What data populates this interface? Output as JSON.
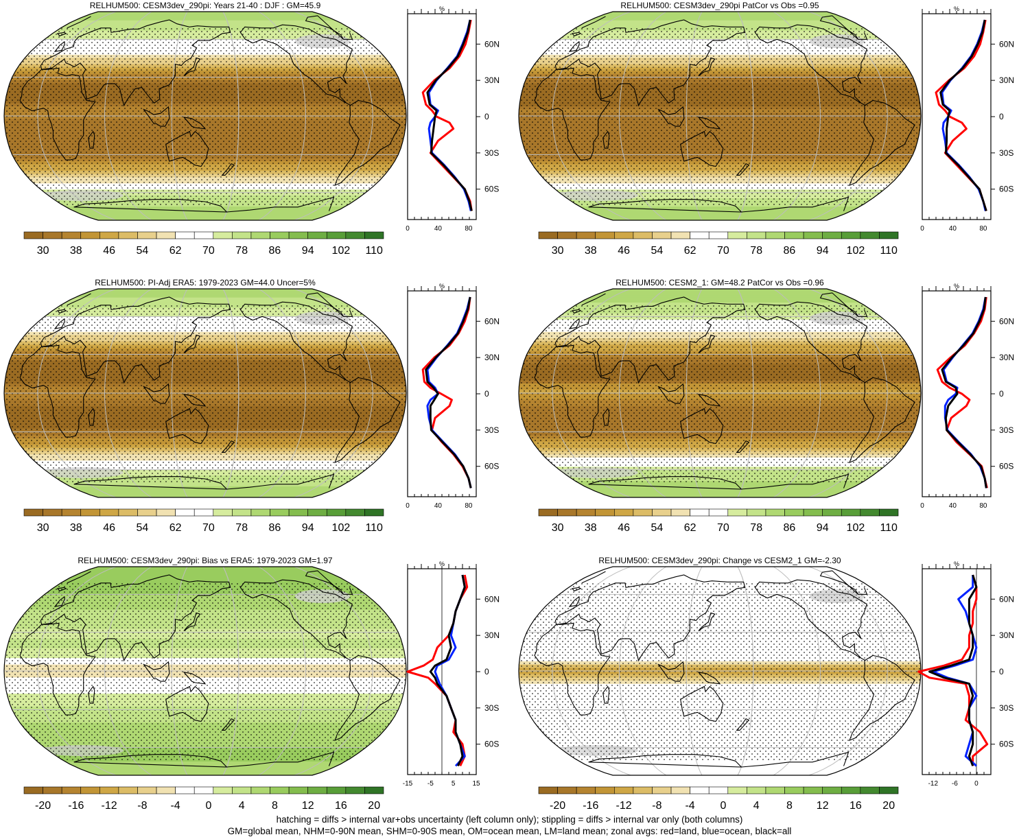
{
  "figure": {
    "footnote_line1": "hatching = diffs > internal var+obs uncertainty (left column only); stippling = diffs > internal var only (both columns)",
    "footnote_line2": "GM=global mean, NHM=0-90N mean, SHM=0-90S mean, OM=ocean mean, LM=land mean; zonal avgs: red=land, blue=ocean, black=all",
    "panel_headers": [
      "RELHUM500: CESM3dev_290pi: Years 21-40 : DJF : GM=45.9",
      "RELHUM500: CESM3dev_290pi PatCor vs Obs =0.95",
      "RELHUM500: PI-Adj ERA5: 1979-2023 GM=44.0 Uncer=5%",
      "RELHUM500: CESM2_1: GM=48.2 PatCor vs Obs =0.96",
      "RELHUM500: CESM3dev_290pi: Bias vs ERA5: 1979-2023 GM=1.97",
      "RELHUM500: CESM3dev_290pi: Change vs CESM2_1 GM=-2.30"
    ]
  },
  "colors": {
    "absolute_scale": [
      "#9a6b22",
      "#a8772a",
      "#b58430",
      "#c29536",
      "#cfa746",
      "#dcbc66",
      "#e8d08c",
      "#f1e2b2",
      "#ffffff",
      "#ffffff",
      "#d6ec9e",
      "#c3e389",
      "#afd872",
      "#99cc5e",
      "#84bd4e",
      "#6eae43",
      "#589e38",
      "#43892f",
      "#2f7426"
    ],
    "difference_scale": [
      "#9a6b22",
      "#a8772a",
      "#b58430",
      "#c29536",
      "#cfa746",
      "#dcbc66",
      "#e8d08c",
      "#f1e2b2",
      "#ffffff",
      "#ffffff",
      "#d6ec9e",
      "#c3e389",
      "#afd872",
      "#99cc5e",
      "#84bd4e",
      "#6eae43",
      "#589e38",
      "#43892f",
      "#2f7426"
    ],
    "land_line": "#ff0000",
    "ocean_line": "#0022ff",
    "all_line": "#000000",
    "no_data": "#cfcfcf"
  },
  "chart_data": [
    {
      "type": "heatmap",
      "title": "RELHUM500: CESM3dev_290pi: Years 21-40 : DJF : GM=45.9",
      "projection": "Robinson, Pacific-centred",
      "colorbar_labels": [
        "30",
        "38",
        "46",
        "54",
        "62",
        "70",
        "78",
        "86",
        "94",
        "102",
        "110"
      ],
      "zonal_profile": {
        "ylabel": "%",
        "lat_tick_labels": [
          "60N",
          "30N",
          "0",
          "30S",
          "60S"
        ],
        "x_tick_labels": [
          "0",
          "40",
          "80"
        ],
        "xlim": [
          0,
          90
        ],
        "lat": [
          80,
          70,
          60,
          50,
          40,
          30,
          20,
          10,
          5,
          0,
          -5,
          -10,
          -20,
          -30,
          -40,
          -50,
          -60,
          -70,
          -78
        ],
        "series": [
          {
            "name": "land",
            "values": [
              83,
              80,
              76,
              68,
              55,
              35,
              20,
              24,
              32,
              38,
              55,
              60,
              40,
              30,
              45,
              60,
              75,
              82,
              84
            ]
          },
          {
            "name": "ocean",
            "values": [
              82,
              78,
              72,
              65,
              52,
              38,
              28,
              30,
              40,
              36,
              30,
              28,
              30,
              32,
              48,
              62,
              74,
              80,
              83
            ]
          },
          {
            "name": "all",
            "values": [
              82,
              79,
              73,
              66,
              53,
              37,
              26,
              29,
              38,
              36,
              35,
              34,
              32,
              31,
              47,
              61,
              75,
              81,
              84
            ]
          }
        ]
      }
    },
    {
      "type": "heatmap",
      "title": "RELHUM500: CESM3dev_290pi PatCor vs Obs =0.95",
      "projection": "Robinson, Pacific-centred",
      "colorbar_labels": [
        "30",
        "38",
        "46",
        "54",
        "62",
        "70",
        "78",
        "86",
        "94",
        "102",
        "110"
      ],
      "zonal_profile": {
        "ylabel": "%",
        "lat_tick_labels": [
          "60N",
          "30N",
          "0",
          "30S",
          "60S"
        ],
        "x_tick_labels": [
          "0",
          "40",
          "80"
        ],
        "xlim": [
          0,
          90
        ],
        "lat": [
          80,
          70,
          60,
          50,
          40,
          30,
          20,
          10,
          5,
          0,
          -5,
          -10,
          -20,
          -30,
          -40,
          -50,
          -60,
          -70,
          -78
        ],
        "series": [
          {
            "name": "land",
            "values": [
              83,
              80,
              76,
              68,
              55,
              35,
              18,
              22,
              30,
              36,
              52,
              58,
              40,
              30,
              45,
              60,
              75,
              80,
              84
            ]
          },
          {
            "name": "ocean",
            "values": [
              82,
              78,
              72,
              64,
              52,
              37,
              26,
              28,
              38,
              34,
              28,
              27,
              30,
              32,
              48,
              62,
              74,
              80,
              83
            ]
          },
          {
            "name": "all",
            "values": [
              82,
              79,
              73,
              65,
              53,
              36,
              24,
              27,
              36,
              34,
              33,
              32,
              32,
              31,
              47,
              61,
              75,
              80,
              84
            ]
          }
        ]
      }
    },
    {
      "type": "heatmap",
      "title": "RELHUM500: PI-Adj ERA5: 1979-2023 GM=44.0 Uncer=5%",
      "projection": "Robinson, Pacific-centred",
      "colorbar_labels": [
        "30",
        "38",
        "46",
        "54",
        "62",
        "70",
        "78",
        "86",
        "94",
        "102",
        "110"
      ],
      "zonal_profile": {
        "ylabel": "%",
        "lat_tick_labels": [
          "60N",
          "30N",
          "0",
          "30S",
          "60S"
        ],
        "x_tick_labels": [
          "0",
          "40",
          "80"
        ],
        "xlim": [
          0,
          90
        ],
        "lat": [
          80,
          70,
          60,
          50,
          40,
          30,
          20,
          10,
          5,
          0,
          -5,
          -10,
          -20,
          -30,
          -40,
          -50,
          -60,
          -70,
          -78
        ],
        "series": [
          {
            "name": "land",
            "values": [
              82,
              80,
              75,
              67,
              55,
              35,
              20,
              22,
              30,
              44,
              58,
              55,
              36,
              32,
              45,
              60,
              72,
              80,
              83
            ]
          },
          {
            "name": "ocean",
            "values": [
              82,
              78,
              72,
              65,
              52,
              38,
              26,
              28,
              36,
              40,
              30,
              26,
              28,
              32,
              47,
              62,
              73,
              80,
              83
            ]
          },
          {
            "name": "all",
            "values": [
              82,
              79,
              73,
              66,
              53,
              37,
              24,
              26,
              34,
              40,
              35,
              30,
              30,
              31,
              46,
              61,
              73,
              80,
              83
            ]
          }
        ]
      }
    },
    {
      "type": "heatmap",
      "title": "RELHUM500: CESM2_1: GM=48.2 PatCor vs Obs =0.96",
      "projection": "Robinson, Pacific-centred",
      "colorbar_labels": [
        "30",
        "38",
        "46",
        "54",
        "62",
        "70",
        "78",
        "86",
        "94",
        "102",
        "110"
      ],
      "zonal_profile": {
        "ylabel": "%",
        "lat_tick_labels": [
          "60N",
          "30N",
          "0",
          "30S",
          "60S"
        ],
        "x_tick_labels": [
          "0",
          "40",
          "80"
        ],
        "xlim": [
          0,
          90
        ],
        "lat": [
          80,
          70,
          60,
          50,
          40,
          30,
          20,
          10,
          5,
          0,
          -5,
          -10,
          -20,
          -30,
          -40,
          -50,
          -60,
          -70,
          -78
        ],
        "series": [
          {
            "name": "land",
            "values": [
              84,
              82,
              77,
              68,
              56,
              37,
              20,
              26,
              36,
              52,
              62,
              58,
              38,
              32,
              45,
              62,
              78,
              82,
              85
            ]
          },
          {
            "name": "ocean",
            "values": [
              83,
              80,
              74,
              66,
              53,
              40,
              28,
              32,
              46,
              44,
              34,
              30,
              30,
              33,
              48,
              64,
              76,
              82,
              84
            ]
          },
          {
            "name": "all",
            "values": [
              83,
              81,
              75,
              67,
              54,
              39,
              26,
              31,
              44,
              46,
              40,
              34,
              31,
              32,
              47,
              63,
              77,
              82,
              84
            ]
          }
        ]
      }
    },
    {
      "type": "heatmap",
      "title": "RELHUM500: CESM3dev_290pi: Bias vs ERA5: 1979-2023 GM=1.97",
      "projection": "Robinson, Pacific-centred",
      "colorbar_labels": [
        "-20",
        "-16",
        "-12",
        "-8",
        "-4",
        "0",
        "4",
        "8",
        "12",
        "16",
        "20"
      ],
      "zonal_profile": {
        "ylabel": "%",
        "lat_tick_labels": [
          "60N",
          "30N",
          "0",
          "30S",
          "60S"
        ],
        "x_tick_labels": [
          "-15",
          "-5",
          "5",
          "15"
        ],
        "xlim": [
          -15,
          15
        ],
        "lat": [
          80,
          70,
          60,
          50,
          40,
          30,
          20,
          10,
          5,
          0,
          -5,
          -10,
          -20,
          -30,
          -40,
          -50,
          -60,
          -70,
          -78
        ],
        "series": [
          {
            "name": "land",
            "values": [
              10,
              11,
              8,
              6,
              5,
              3,
              -2,
              -4,
              -8,
              -15,
              -6,
              -3,
              2,
              4,
              6,
              5,
              9,
              10,
              8
            ]
          },
          {
            "name": "ocean",
            "values": [
              9,
              10,
              8,
              6,
              5,
              4,
              6,
              3,
              -2,
              -3,
              -2,
              -1,
              2,
              4,
              6,
              6,
              8,
              10,
              6
            ]
          },
          {
            "name": "all",
            "values": [
              9,
              10,
              8,
              6,
              5,
              3,
              4,
              2,
              -3,
              -5,
              -3,
              -2,
              2,
              4,
              6,
              6,
              8,
              9,
              7
            ]
          }
        ]
      }
    },
    {
      "type": "heatmap",
      "title": "RELHUM500: CESM3dev_290pi: Change vs CESM2_1 GM=-2.30",
      "projection": "Robinson, Pacific-centred",
      "colorbar_labels": [
        "-20",
        "-16",
        "-12",
        "-8",
        "-4",
        "0",
        "4",
        "8",
        "12",
        "16",
        "20"
      ],
      "zonal_profile": {
        "ylabel": "%",
        "lat_tick_labels": [
          "60N",
          "30N",
          "0",
          "30S",
          "60S"
        ],
        "x_tick_labels": [
          "-12",
          "-6",
          "0"
        ],
        "xlim": [
          -15,
          4
        ],
        "lat": [
          80,
          70,
          60,
          50,
          40,
          30,
          20,
          10,
          5,
          0,
          -5,
          -10,
          -20,
          -30,
          -40,
          -50,
          -60,
          -70,
          -78
        ],
        "series": [
          {
            "name": "land",
            "values": [
              -1,
              0,
              0,
              -1,
              -1,
              -2,
              -2,
              -4,
              -9,
              -16,
              -13,
              -3,
              -2,
              -2,
              -3,
              1,
              3,
              -1,
              -1
            ]
          },
          {
            "name": "ocean",
            "values": [
              -1,
              -1,
              -5,
              -3,
              -2,
              -1,
              0,
              -1,
              -6,
              -12,
              -8,
              -2,
              0,
              -2,
              -2,
              -1,
              -2,
              -3,
              0
            ]
          },
          {
            "name": "all",
            "values": [
              -1,
              0,
              -2,
              -2,
              -2,
              -1,
              -1,
              -2,
              -7,
              -13,
              -9,
              -2,
              -1,
              -2,
              -2,
              -1,
              -1,
              -2,
              -1
            ]
          }
        ]
      }
    }
  ]
}
